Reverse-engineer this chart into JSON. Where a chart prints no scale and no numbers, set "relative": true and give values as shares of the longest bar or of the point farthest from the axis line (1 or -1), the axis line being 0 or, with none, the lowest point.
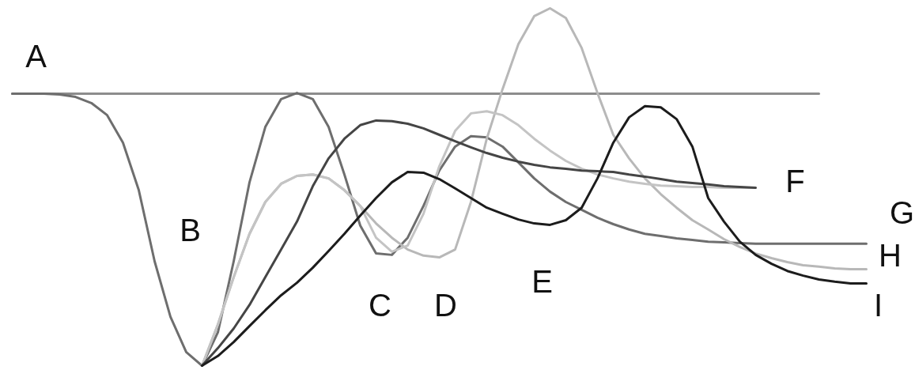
{
  "chart_data": {
    "type": "line",
    "relative": true,
    "categories": [
      null,
      null,
      null,
      null,
      null,
      null,
      null,
      null,
      null,
      null,
      null,
      null,
      null,
      null,
      null,
      null,
      null,
      null,
      null,
      null,
      null,
      null,
      null,
      null,
      null,
      null,
      null,
      null,
      null,
      null,
      null,
      null,
      null,
      null,
      null,
      null,
      null,
      null,
      null,
      null,
      null,
      null,
      null,
      null,
      null,
      null,
      null,
      null,
      null,
      null,
      null,
      null,
      null,
      null,
      null
    ],
    "series": [
      {
        "color": "#8c8c8c",
        "values": [
          0.761,
          0.761,
          0.761,
          0.761,
          0.761,
          0.761,
          0.761,
          0.761,
          0.761,
          0.761,
          0.761,
          0.761,
          0.761,
          0.761,
          0.761,
          0.761,
          0.761,
          0.761,
          0.761,
          0.761,
          0.761,
          0.761,
          0.761,
          0.761,
          0.761,
          0.761,
          0.761,
          0.761,
          0.761,
          0.761,
          0.761,
          0.761,
          0.761,
          0.761,
          0.761,
          0.761,
          0.761,
          0.761,
          0.761,
          0.761,
          0.761,
          0.761,
          0.761,
          0.761,
          0.761,
          0.761,
          0.761,
          0.761,
          0.761,
          0.761,
          0.761,
          0.761,
          null,
          null,
          null
        ]
      },
      {
        "color": "#6e6e6e",
        "values": [
          0.761,
          0.761,
          0.761,
          0.759,
          0.752,
          0.735,
          0.701,
          0.624,
          0.491,
          0.292,
          0.137,
          0.038,
          0,
          0.093,
          0.292,
          0.513,
          0.668,
          0.746,
          0.763,
          0.746,
          0.668,
          0.535,
          0.392,
          0.314,
          0.31,
          0.358,
          0.447,
          0.546,
          0.613,
          0.642,
          0.639,
          0.613,
          0.569,
          0.524,
          0.487,
          0.458,
          0.436,
          0.414,
          0.396,
          0.381,
          0.369,
          0.363,
          0.356,
          0.352,
          0.347,
          0.345,
          0.343,
          0.341,
          0.341,
          0.341,
          0.341,
          0.341,
          0.341,
          0.341,
          0.341
        ]
      },
      {
        "color": "#b8b8b8",
        "values": [
          null,
          null,
          null,
          null,
          null,
          null,
          null,
          null,
          null,
          null,
          null,
          null,
          0,
          0.115,
          0.248,
          0.369,
          0.458,
          0.509,
          0.531,
          0.535,
          0.524,
          0.491,
          0.447,
          0.398,
          0.358,
          0.325,
          0.308,
          0.303,
          0.325,
          0.458,
          0.635,
          0.774,
          0.9,
          0.978,
          1,
          0.973,
          0.889,
          0.763,
          0.646,
          0.58,
          0.524,
          0.48,
          0.442,
          0.407,
          0.381,
          0.354,
          0.332,
          0.314,
          0.301,
          0.29,
          0.281,
          0.277,
          0.272,
          0.27,
          0.27
        ]
      },
      {
        "color": "#c4c4c4",
        "values": [
          null,
          null,
          null,
          null,
          null,
          null,
          null,
          null,
          null,
          null,
          null,
          null,
          0,
          0.115,
          0.248,
          0.369,
          0.458,
          0.509,
          0.531,
          0.535,
          0.524,
          0.491,
          0.447,
          0.358,
          0.319,
          0.336,
          0.425,
          0.558,
          0.657,
          0.706,
          0.712,
          0.701,
          0.673,
          0.635,
          0.602,
          0.573,
          0.551,
          0.535,
          0.524,
          0.515,
          0.509,
          0.504,
          0.502,
          0.5,
          0.5,
          0.498,
          0.498,
          0.498,
          null,
          null,
          null,
          null,
          null,
          null,
          null
        ]
      },
      {
        "color": "#454545",
        "values": [
          null,
          null,
          null,
          null,
          null,
          null,
          null,
          null,
          null,
          null,
          null,
          null,
          0,
          0.049,
          0.104,
          0.17,
          0.248,
          0.325,
          0.403,
          0.502,
          0.58,
          0.635,
          0.673,
          0.686,
          0.684,
          0.677,
          0.664,
          0.646,
          0.628,
          0.611,
          0.595,
          0.582,
          0.571,
          0.562,
          0.555,
          0.551,
          0.546,
          0.544,
          0.542,
          0.535,
          0.529,
          0.522,
          0.515,
          0.511,
          0.507,
          0.502,
          0.5,
          0.498,
          null,
          null,
          null,
          null,
          null,
          null,
          null
        ]
      },
      {
        "color": "#1c1c1c",
        "values": [
          null,
          null,
          null,
          null,
          null,
          null,
          null,
          null,
          null,
          null,
          null,
          null,
          0,
          0.027,
          0.066,
          0.111,
          0.155,
          0.197,
          0.232,
          0.274,
          0.321,
          0.369,
          0.42,
          0.469,
          0.513,
          0.542,
          0.54,
          0.522,
          0.496,
          0.469,
          0.442,
          0.425,
          0.409,
          0.398,
          0.394,
          0.407,
          0.442,
          0.524,
          0.624,
          0.695,
          0.726,
          0.723,
          0.69,
          0.613,
          0.469,
          0.403,
          0.347,
          0.31,
          0.285,
          0.265,
          0.252,
          0.241,
          0.235,
          0.23,
          0.23
        ]
      }
    ],
    "annotations": [
      "A",
      "B",
      "C",
      "D",
      "E",
      "F",
      "G",
      "H",
      "I"
    ]
  }
}
